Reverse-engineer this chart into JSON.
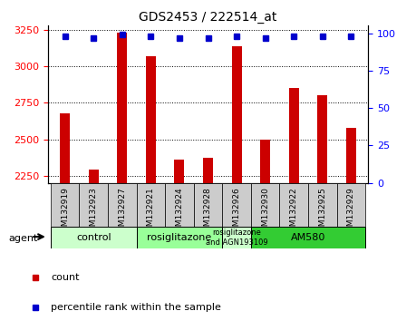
{
  "title": "GDS2453 / 222514_at",
  "samples": [
    "GSM132919",
    "GSM132923",
    "GSM132927",
    "GSM132921",
    "GSM132924",
    "GSM132928",
    "GSM132926",
    "GSM132930",
    "GSM132922",
    "GSM132925",
    "GSM132929"
  ],
  "counts": [
    2680,
    2290,
    3230,
    3070,
    2360,
    2375,
    3140,
    2500,
    2850,
    2800,
    2580
  ],
  "percentiles": [
    98,
    97,
    99,
    98,
    97,
    97,
    98,
    97,
    98,
    98,
    98
  ],
  "ylim_left": [
    2200,
    3280
  ],
  "ylim_right": [
    0,
    105
  ],
  "yticks_left": [
    2250,
    2500,
    2750,
    3000,
    3250
  ],
  "yticks_right": [
    0,
    25,
    50,
    75,
    100
  ],
  "bar_color": "#cc0000",
  "dot_color": "#0000cc",
  "agent_groups": [
    {
      "label": "control",
      "start": 0,
      "end": 2,
      "color": "#ccffcc"
    },
    {
      "label": "rosiglitazone",
      "start": 3,
      "end": 5,
      "color": "#99ff99"
    },
    {
      "label": "rosiglitazone\nand AGN193109",
      "start": 6,
      "end": 6,
      "color": "#ccffcc"
    },
    {
      "label": "AM580",
      "start": 7,
      "end": 10,
      "color": "#33cc33"
    }
  ],
  "legend_count_color": "#cc0000",
  "legend_pct_color": "#0000cc",
  "bar_width": 0.35,
  "tick_label_bg": "#cccccc",
  "plot_bg": "#ffffff"
}
